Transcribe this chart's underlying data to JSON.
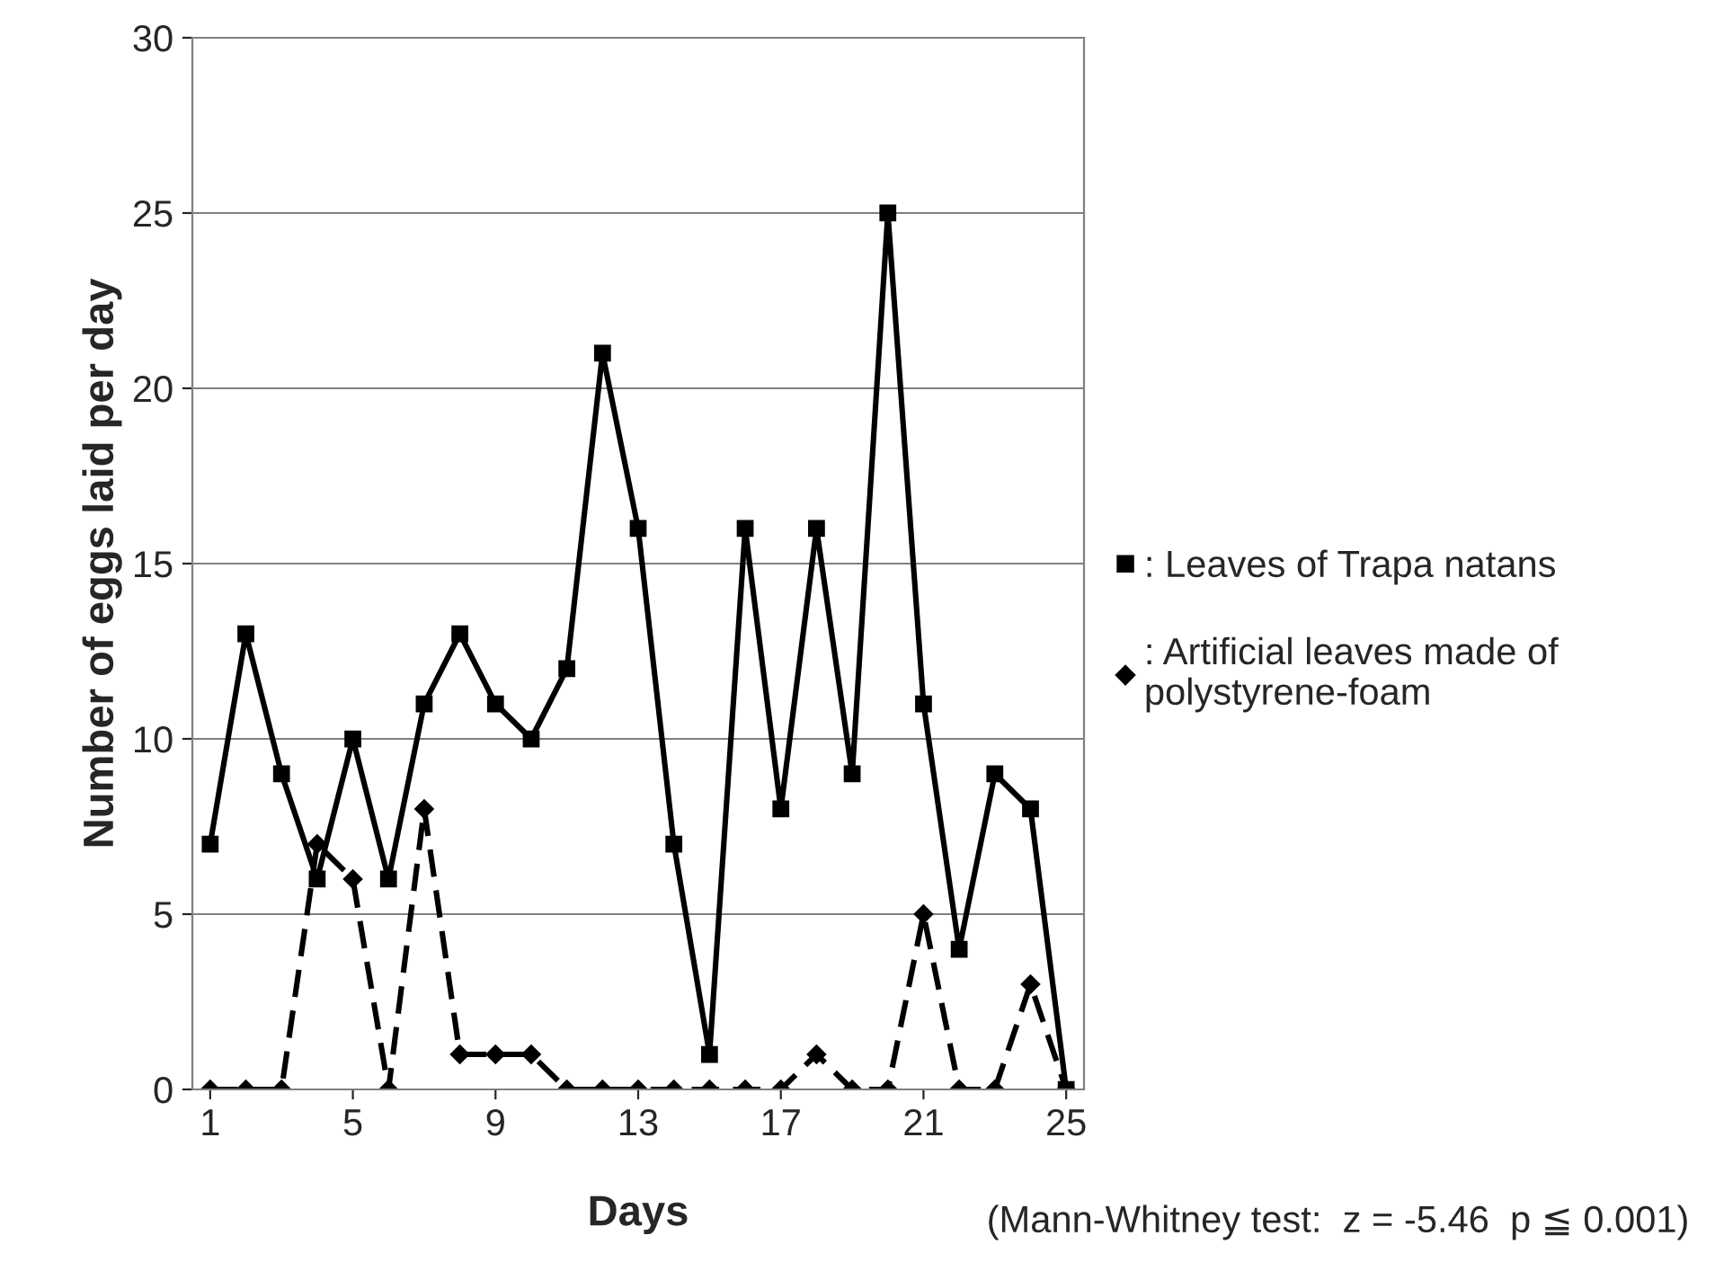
{
  "chart_data": {
    "type": "line",
    "xlabel": "Days",
    "ylabel": "Number of eggs laid per day",
    "x": [
      1,
      2,
      3,
      4,
      5,
      6,
      7,
      8,
      9,
      10,
      11,
      12,
      13,
      14,
      15,
      16,
      17,
      18,
      19,
      20,
      21,
      22,
      23,
      24,
      25
    ],
    "series": [
      {
        "name": ": Leaves of Trapa natans",
        "color": "#000000",
        "marker": "square",
        "line_style": "solid",
        "values": [
          7,
          13,
          9,
          6,
          10,
          6,
          11,
          13,
          11,
          10,
          12,
          21,
          16,
          7,
          1,
          16,
          8,
          16,
          9,
          25,
          11,
          4,
          9,
          8,
          0
        ]
      },
      {
        "name": ": Artificial leaves made of\npolystyrene-foam",
        "color": "#000000",
        "marker": "diamond",
        "line_style": "dashed",
        "values": [
          0,
          0,
          0,
          7,
          6,
          0,
          8,
          1,
          1,
          1,
          0,
          0,
          0,
          0,
          0,
          0,
          0,
          1,
          0,
          0,
          5,
          0,
          0,
          3,
          0
        ]
      }
    ],
    "xlim": [
      0.5,
      25.5
    ],
    "xticks": [
      1,
      5,
      9,
      13,
      17,
      21,
      25
    ],
    "ylim": [
      0,
      30
    ],
    "yticks": [
      0,
      5,
      10,
      15,
      20,
      25,
      30
    ],
    "grid": "y",
    "legend": "right",
    "annotations": [
      "(Mann-Whitney test:  z = -5.46  p ≦ 0.001)"
    ]
  }
}
